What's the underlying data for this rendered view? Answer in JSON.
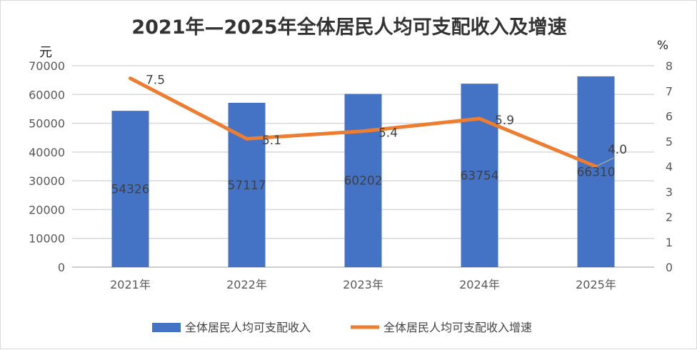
{
  "chart_data": {
    "type": "bar+line",
    "title": "2021年—2025年全体居民人均可支配收入及增速",
    "categories": [
      "2021年",
      "2022年",
      "2023年",
      "2024年",
      "2025年"
    ],
    "left_unit": "元",
    "right_unit": "%",
    "left_ylim": [
      0,
      70000
    ],
    "left_ticks": [
      "0",
      "10000",
      "20000",
      "30000",
      "40000",
      "50000",
      "60000",
      "70000"
    ],
    "right_ylim": [
      0,
      8
    ],
    "right_ticks": [
      "0",
      "1",
      "2",
      "3",
      "4",
      "5",
      "6",
      "7",
      "8"
    ],
    "grid": true,
    "legend_position": "bottom",
    "series": [
      {
        "name": "全体居民人均可支配收入",
        "type": "bar",
        "axis": "left",
        "color": "#4472c4",
        "values": [
          54326,
          57117,
          60202,
          63754,
          66310
        ],
        "labels": [
          "54326",
          "57117",
          "60202",
          "63754",
          "66310"
        ]
      },
      {
        "name": "全体居民人均可支配收入增速",
        "type": "line",
        "axis": "right",
        "color": "#ed7d31",
        "values": [
          7.5,
          5.1,
          5.4,
          5.9,
          4.0
        ],
        "labels": [
          "7.5",
          "5.1",
          "5.4",
          "5.9",
          "4.0"
        ]
      }
    ]
  }
}
